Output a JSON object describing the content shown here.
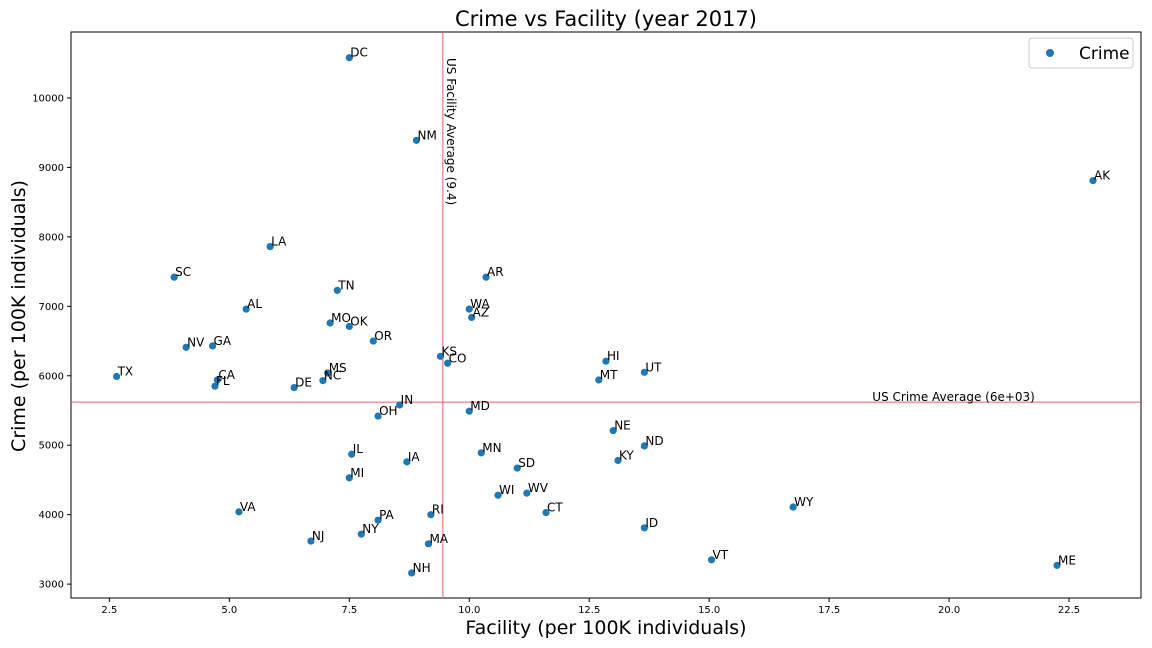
{
  "chart_data": {
    "type": "scatter",
    "title": "Crime vs Facility (year 2017)",
    "xlabel": "Facility (per 100K individuals)",
    "ylabel": "Crime (per 100K individuals)",
    "xlim": [
      1.7,
      24.0
    ],
    "ylim": [
      2800,
      10950
    ],
    "xticks": [
      2.5,
      5.0,
      7.5,
      10.0,
      12.5,
      15.0,
      17.5,
      20.0,
      22.5
    ],
    "xtick_labels": [
      "2.5",
      "5.0",
      "7.5",
      "10.0",
      "12.5",
      "15.0",
      "17.5",
      "20.0",
      "22.5"
    ],
    "yticks": [
      3000,
      4000,
      5000,
      6000,
      7000,
      8000,
      9000,
      10000
    ],
    "ytick_labels": [
      "3000",
      "4000",
      "5000",
      "6000",
      "7000",
      "8000",
      "9000",
      "10000"
    ],
    "grid": false,
    "legend": {
      "position": "top-right",
      "entries": [
        "Crime"
      ]
    },
    "series": [
      {
        "name": "Crime",
        "color": "#1f77b4",
        "points": [
          {
            "label": "DC",
            "x": 7.5,
            "y": 10580
          },
          {
            "label": "NM",
            "x": 8.9,
            "y": 9390
          },
          {
            "label": "AK",
            "x": 23.0,
            "y": 8810
          },
          {
            "label": "LA",
            "x": 5.85,
            "y": 7860
          },
          {
            "label": "SC",
            "x": 3.85,
            "y": 7420
          },
          {
            "label": "AR",
            "x": 10.35,
            "y": 7420
          },
          {
            "label": "TN",
            "x": 7.25,
            "y": 7230
          },
          {
            "label": "AL",
            "x": 5.35,
            "y": 6960
          },
          {
            "label": "WA",
            "x": 10.0,
            "y": 6960
          },
          {
            "label": "AZ",
            "x": 10.05,
            "y": 6840
          },
          {
            "label": "MO",
            "x": 7.1,
            "y": 6760
          },
          {
            "label": "OK",
            "x": 7.5,
            "y": 6710
          },
          {
            "label": "OR",
            "x": 8.0,
            "y": 6500
          },
          {
            "label": "NV",
            "x": 4.1,
            "y": 6410
          },
          {
            "label": "GA",
            "x": 4.65,
            "y": 6430
          },
          {
            "label": "KS",
            "x": 9.4,
            "y": 6280
          },
          {
            "label": "CO",
            "x": 9.55,
            "y": 6180
          },
          {
            "label": "HI",
            "x": 12.85,
            "y": 6210
          },
          {
            "label": "UT",
            "x": 13.65,
            "y": 6050
          },
          {
            "label": "MS",
            "x": 7.05,
            "y": 6040
          },
          {
            "label": "NC",
            "x": 6.95,
            "y": 5930
          },
          {
            "label": "MT",
            "x": 12.7,
            "y": 5940
          },
          {
            "label": "TX",
            "x": 2.65,
            "y": 5990
          },
          {
            "label": "CA",
            "x": 4.75,
            "y": 5940
          },
          {
            "label": "FL",
            "x": 4.7,
            "y": 5850
          },
          {
            "label": "DE",
            "x": 6.35,
            "y": 5830
          },
          {
            "label": "IN",
            "x": 8.55,
            "y": 5580
          },
          {
            "label": "MD",
            "x": 10.0,
            "y": 5490
          },
          {
            "label": "OH",
            "x": 8.1,
            "y": 5420
          },
          {
            "label": "NE",
            "x": 13.0,
            "y": 5210
          },
          {
            "label": "ND",
            "x": 13.65,
            "y": 4990
          },
          {
            "label": "MN",
            "x": 10.25,
            "y": 4890
          },
          {
            "label": "IL",
            "x": 7.55,
            "y": 4870
          },
          {
            "label": "KY",
            "x": 13.1,
            "y": 4780
          },
          {
            "label": "IA",
            "x": 8.7,
            "y": 4760
          },
          {
            "label": "SD",
            "x": 11.0,
            "y": 4670
          },
          {
            "label": "MI",
            "x": 7.5,
            "y": 4530
          },
          {
            "label": "WV",
            "x": 11.2,
            "y": 4310
          },
          {
            "label": "WI",
            "x": 10.6,
            "y": 4280
          },
          {
            "label": "WY",
            "x": 16.75,
            "y": 4110
          },
          {
            "label": "VA",
            "x": 5.2,
            "y": 4040
          },
          {
            "label": "CT",
            "x": 11.6,
            "y": 4030
          },
          {
            "label": "RI",
            "x": 9.2,
            "y": 4000
          },
          {
            "label": "PA",
            "x": 8.1,
            "y": 3920
          },
          {
            "label": "ID",
            "x": 13.65,
            "y": 3810
          },
          {
            "label": "NY",
            "x": 7.75,
            "y": 3720
          },
          {
            "label": "NJ",
            "x": 6.7,
            "y": 3620
          },
          {
            "label": "MA",
            "x": 9.15,
            "y": 3580
          },
          {
            "label": "VT",
            "x": 15.05,
            "y": 3350
          },
          {
            "label": "ME",
            "x": 22.25,
            "y": 3270
          },
          {
            "label": "NH",
            "x": 8.8,
            "y": 3160
          }
        ]
      }
    ],
    "reference_lines": {
      "vertical": {
        "x": 9.45,
        "label": "US Facility Average (9.4)",
        "color": "#e06070"
      },
      "horizontal": {
        "y": 5620,
        "label": "US Crime Average (6e+03)",
        "color": "#e06070"
      }
    }
  }
}
